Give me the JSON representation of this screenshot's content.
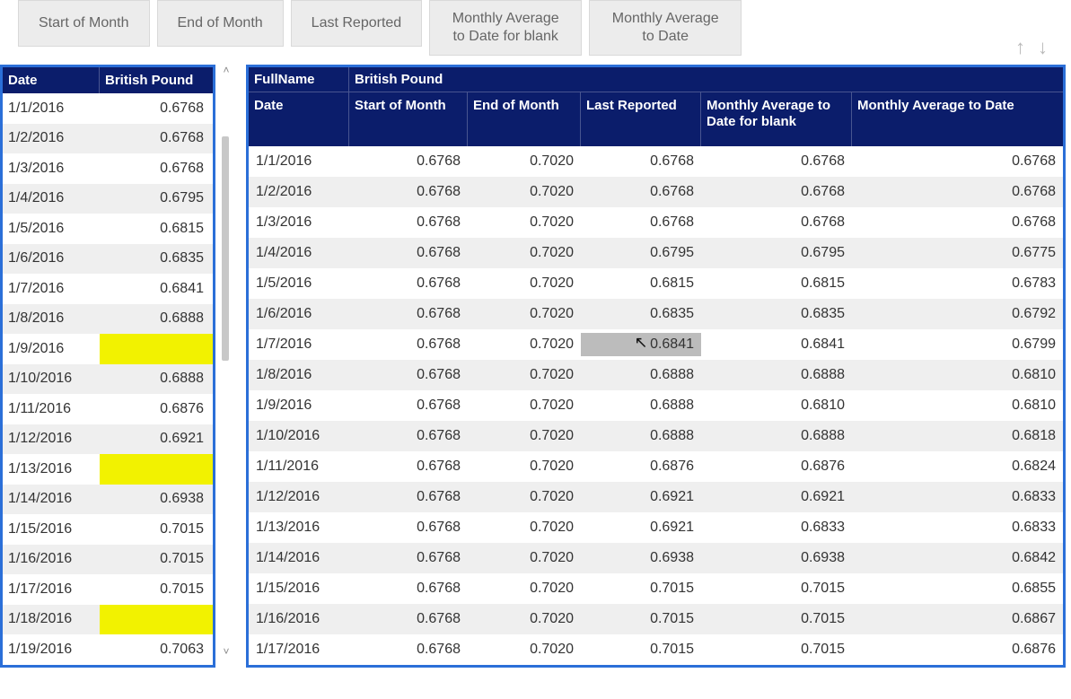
{
  "colors": {
    "frame_border": "#2b6fd8",
    "header_bg": "#0b1d6b",
    "header_fg": "#ffffff",
    "row_alt_bg": "#efefef",
    "blank_highlight": "#f2f200",
    "cell_highlight": "#bcbcbc",
    "tab_bg": "#ececec",
    "tab_fg": "#666666",
    "arrow_fg": "#b9b9b9"
  },
  "tabs": [
    {
      "label": "Start of Month"
    },
    {
      "label": "End of Month"
    },
    {
      "label": "Last Reported"
    },
    {
      "label": "Monthly Average to Date for blank",
      "two_line": true
    },
    {
      "label": "Monthly Average to Date",
      "two_line": true
    }
  ],
  "nav": {
    "up": "↑",
    "down": "↓"
  },
  "left_table": {
    "header": {
      "date": "Date",
      "value": "British Pound"
    },
    "rows": [
      {
        "date": "1/1/2016",
        "value": "0.6768"
      },
      {
        "date": "1/2/2016",
        "value": "0.6768"
      },
      {
        "date": "1/3/2016",
        "value": "0.6768"
      },
      {
        "date": "1/4/2016",
        "value": "0.6795"
      },
      {
        "date": "1/5/2016",
        "value": "0.6815"
      },
      {
        "date": "1/6/2016",
        "value": "0.6835"
      },
      {
        "date": "1/7/2016",
        "value": "0.6841"
      },
      {
        "date": "1/8/2016",
        "value": "0.6888"
      },
      {
        "date": "1/9/2016",
        "value": "",
        "blank": true
      },
      {
        "date": "1/10/2016",
        "value": "0.6888"
      },
      {
        "date": "1/11/2016",
        "value": "0.6876"
      },
      {
        "date": "1/12/2016",
        "value": "0.6921"
      },
      {
        "date": "1/13/2016",
        "value": "",
        "blank": true
      },
      {
        "date": "1/14/2016",
        "value": "0.6938"
      },
      {
        "date": "1/15/2016",
        "value": "0.7015"
      },
      {
        "date": "1/16/2016",
        "value": "0.7015"
      },
      {
        "date": "1/17/2016",
        "value": "0.7015"
      },
      {
        "date": "1/18/2016",
        "value": "",
        "blank": true
      },
      {
        "date": "1/19/2016",
        "value": "0.7063"
      }
    ]
  },
  "right_table": {
    "top_header": {
      "fullname_label": "FullName",
      "currency": "British Pound"
    },
    "columns": {
      "date": "Date",
      "som": "Start of Month",
      "eom": "End of Month",
      "lr": "Last Reported",
      "mavb": "Monthly Average to Date for blank",
      "mav": "Monthly Average to Date"
    },
    "highlight": {
      "row": 6,
      "col": "lr"
    },
    "rows": [
      {
        "date": "1/1/2016",
        "som": "0.6768",
        "eom": "0.7020",
        "lr": "0.6768",
        "mavb": "0.6768",
        "mav": "0.6768"
      },
      {
        "date": "1/2/2016",
        "som": "0.6768",
        "eom": "0.7020",
        "lr": "0.6768",
        "mavb": "0.6768",
        "mav": "0.6768"
      },
      {
        "date": "1/3/2016",
        "som": "0.6768",
        "eom": "0.7020",
        "lr": "0.6768",
        "mavb": "0.6768",
        "mav": "0.6768"
      },
      {
        "date": "1/4/2016",
        "som": "0.6768",
        "eom": "0.7020",
        "lr": "0.6795",
        "mavb": "0.6795",
        "mav": "0.6775"
      },
      {
        "date": "1/5/2016",
        "som": "0.6768",
        "eom": "0.7020",
        "lr": "0.6815",
        "mavb": "0.6815",
        "mav": "0.6783"
      },
      {
        "date": "1/6/2016",
        "som": "0.6768",
        "eom": "0.7020",
        "lr": "0.6835",
        "mavb": "0.6835",
        "mav": "0.6792"
      },
      {
        "date": "1/7/2016",
        "som": "0.6768",
        "eom": "0.7020",
        "lr": "0.6841",
        "mavb": "0.6841",
        "mav": "0.6799"
      },
      {
        "date": "1/8/2016",
        "som": "0.6768",
        "eom": "0.7020",
        "lr": "0.6888",
        "mavb": "0.6888",
        "mav": "0.6810"
      },
      {
        "date": "1/9/2016",
        "som": "0.6768",
        "eom": "0.7020",
        "lr": "0.6888",
        "mavb": "0.6810",
        "mav": "0.6810"
      },
      {
        "date": "1/10/2016",
        "som": "0.6768",
        "eom": "0.7020",
        "lr": "0.6888",
        "mavb": "0.6888",
        "mav": "0.6818"
      },
      {
        "date": "1/11/2016",
        "som": "0.6768",
        "eom": "0.7020",
        "lr": "0.6876",
        "mavb": "0.6876",
        "mav": "0.6824"
      },
      {
        "date": "1/12/2016",
        "som": "0.6768",
        "eom": "0.7020",
        "lr": "0.6921",
        "mavb": "0.6921",
        "mav": "0.6833"
      },
      {
        "date": "1/13/2016",
        "som": "0.6768",
        "eom": "0.7020",
        "lr": "0.6921",
        "mavb": "0.6833",
        "mav": "0.6833"
      },
      {
        "date": "1/14/2016",
        "som": "0.6768",
        "eom": "0.7020",
        "lr": "0.6938",
        "mavb": "0.6938",
        "mav": "0.6842"
      },
      {
        "date": "1/15/2016",
        "som": "0.6768",
        "eom": "0.7020",
        "lr": "0.7015",
        "mavb": "0.7015",
        "mav": "0.6855"
      },
      {
        "date": "1/16/2016",
        "som": "0.6768",
        "eom": "0.7020",
        "lr": "0.7015",
        "mavb": "0.7015",
        "mav": "0.6867"
      },
      {
        "date": "1/17/2016",
        "som": "0.6768",
        "eom": "0.7020",
        "lr": "0.7015",
        "mavb": "0.7015",
        "mav": "0.6876"
      }
    ]
  }
}
